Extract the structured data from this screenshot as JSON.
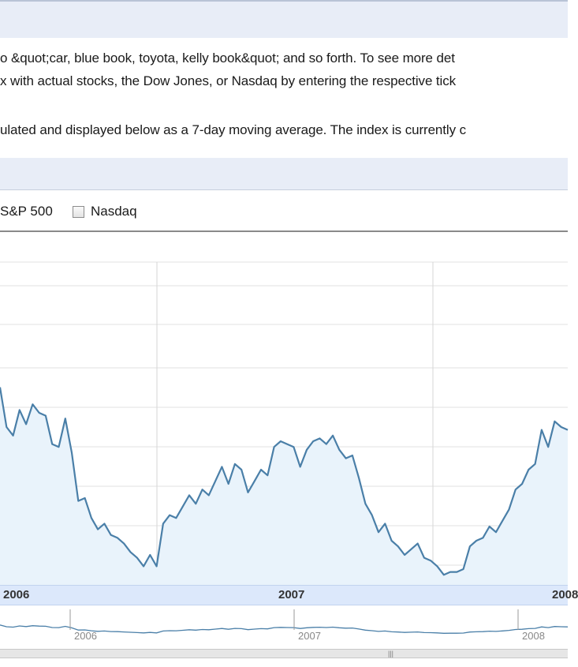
{
  "description": {
    "line1": "o &quot;car, blue book, toyota, kelly book&quot; and so forth. To see more det",
    "line2": "x with actual stocks, the Dow Jones, or Nasdaq by entering the respective tick",
    "line3": "ulated and displayed below as a 7-day moving average. The index is currently c"
  },
  "options": {
    "sp500_label": "S&P 500",
    "nasdaq_label": "Nasdaq",
    "nasdaq_checked": false
  },
  "colors": {
    "line": "#4a7fa8",
    "fill": "#e9f3fb",
    "band": "#dce8fb"
  },
  "chart_data": {
    "type": "area",
    "x_labels": [
      "2006",
      "2007",
      "2008"
    ],
    "overview_labels": [
      "2006",
      "2007",
      "2008"
    ],
    "grid": true,
    "values": [
      64,
      50,
      47,
      56,
      51,
      58,
      55,
      54,
      44,
      43,
      53,
      41,
      24,
      25,
      18,
      14,
      16,
      12,
      11,
      9,
      6,
      4,
      1,
      5,
      1,
      16,
      19,
      18,
      22,
      26,
      23,
      28,
      26,
      31,
      36,
      30,
      37,
      35,
      27,
      31,
      35,
      33,
      43,
      45,
      44,
      43,
      36,
      42,
      45,
      46,
      44,
      47,
      42,
      39,
      40,
      32,
      23,
      19,
      13,
      16,
      10,
      8,
      5,
      7,
      9,
      4,
      3,
      1,
      -2,
      -1,
      -1,
      0,
      8,
      10,
      11,
      15,
      13,
      17,
      21,
      28,
      30,
      35,
      37,
      49,
      43,
      52,
      50,
      49
    ]
  }
}
